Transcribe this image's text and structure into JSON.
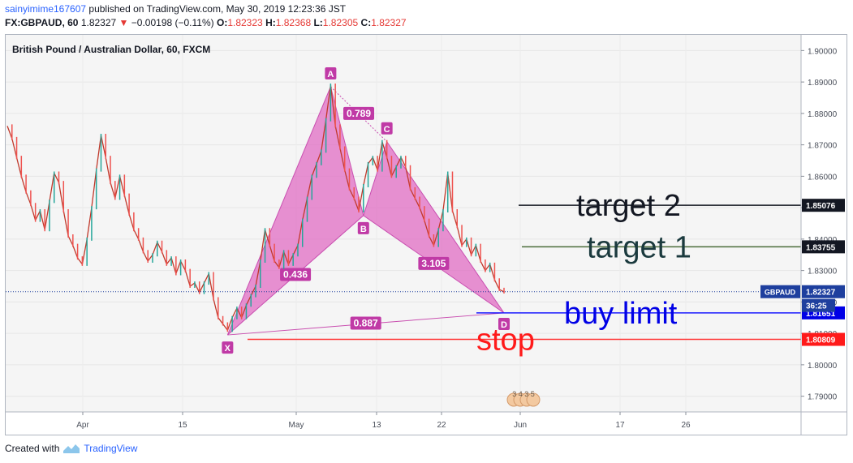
{
  "header": {
    "user": "sainyimime167607",
    "published": " published on TradingView.com, May 30, 2019 12:23:36 JST",
    "symbol": "FX:GBPAUD, 60",
    "last": "1.82327",
    "change_arrow": "▼",
    "change": "−0.00198 (−0.11%)",
    "o_label": "O:",
    "o": "1.82323",
    "h_label": "H:",
    "h": "1.82368",
    "l_label": "L:",
    "l": "1.82305",
    "c_label": "C:",
    "c": "1.82327"
  },
  "footer": {
    "created_with": "Created with",
    "brand": "TradingView"
  },
  "chart_data": {
    "type": "line",
    "title": "British Pound / Australian Dollar, 60, FXCM",
    "ylim": [
      1.785,
      1.905
    ],
    "y_ticks": [
      1.9,
      1.89,
      1.88,
      1.87,
      1.86,
      1.85,
      1.84,
      1.83,
      1.82,
      1.81,
      1.8,
      1.79
    ],
    "y_tick_labels": [
      "1.90000",
      "1.89000",
      "1.88000",
      "1.87000",
      "1.86000",
      "1.85000",
      "1.84000",
      "1.83000",
      "1.82000",
      "1.81000",
      "1.80000",
      "1.79000"
    ],
    "x_ticks": [
      "Apr",
      "15",
      "May",
      "13",
      "22",
      "Jun",
      "17",
      "26"
    ],
    "series": [
      {
        "values": [
          1.876,
          1.872,
          1.866,
          1.86,
          1.855,
          1.851,
          1.846,
          1.849,
          1.843,
          1.852,
          1.861,
          1.858,
          1.849,
          1.841,
          1.838,
          1.834,
          1.832,
          1.84,
          1.85,
          1.862,
          1.873,
          1.866,
          1.858,
          1.853,
          1.86,
          1.854,
          1.848,
          1.843,
          1.84,
          1.836,
          1.833,
          1.835,
          1.839,
          1.836,
          1.832,
          1.834,
          1.829,
          1.833,
          1.83,
          1.825,
          1.826,
          1.823,
          1.826,
          1.829,
          1.821,
          1.815,
          1.813,
          1.811,
          1.815,
          1.818,
          1.815,
          1.819,
          1.822,
          1.825,
          1.833,
          1.843,
          1.838,
          1.833,
          1.831,
          1.836,
          1.832,
          1.835,
          1.838,
          1.846,
          1.853,
          1.86,
          1.864,
          1.868,
          1.878,
          1.889,
          1.876,
          1.869,
          1.862,
          1.856,
          1.853,
          1.849,
          1.857,
          1.864,
          1.866,
          1.862,
          1.871,
          1.866,
          1.86,
          1.863,
          1.866,
          1.863,
          1.856,
          1.853,
          1.85,
          1.846,
          1.841,
          1.838,
          1.843,
          1.849,
          1.861,
          1.849,
          1.844,
          1.838,
          1.84,
          1.835,
          1.838,
          1.833,
          1.83,
          1.832,
          1.827,
          1.824,
          1.8232
        ]
      }
    ],
    "harmonic": {
      "points": [
        {
          "label": "X",
          "price": 1.8095
        },
        {
          "label": "A",
          "price": 1.8885
        },
        {
          "label": "B",
          "price": 1.8475
        },
        {
          "label": "C",
          "price": 1.871
        },
        {
          "label": "D",
          "price": 1.8165
        }
      ],
      "ratios": [
        "0.789",
        "0.436",
        "3.105",
        "0.887"
      ]
    },
    "levels": [
      {
        "text": "target 2",
        "price": 1.85076,
        "label": "1.85076",
        "line_color": "#131722",
        "text_color": "#131722",
        "badge_color": "#131722"
      },
      {
        "text": "target 1",
        "price": 1.83755,
        "label": "1.83755",
        "line_color": "#4a6b3a",
        "text_color": "#1b3a3e",
        "badge_color": "#131722"
      },
      {
        "text": "buy limit",
        "price": 1.81651,
        "label": "1.81651",
        "line_color": "#1a1aff",
        "text_color": "#0000e6",
        "badge_color": "#0000e6"
      },
      {
        "text": "stop",
        "price": 1.80809,
        "label": "1.80809",
        "line_color": "#ff3333",
        "text_color": "#ff1a1a",
        "badge_color": "#ff1a1a"
      }
    ],
    "current": {
      "symbol": "GBPAUD",
      "price_label": "1.82327",
      "countdown": "36:25",
      "price": 1.82327
    },
    "event_icons_text": "3 4 3 5",
    "colors": {
      "up": "#26a69a",
      "down": "#ef5350",
      "line": "#c0392b",
      "pattern": "#e06cc3",
      "pattern_stroke": "#c94fb0",
      "badge": "#c03aa6"
    }
  }
}
